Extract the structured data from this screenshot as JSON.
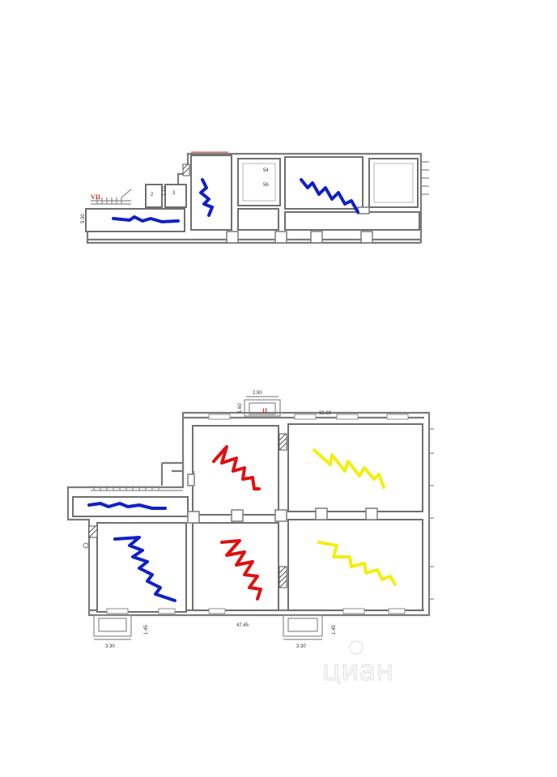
{
  "upper_plan": {
    "room_labels": {
      "room_2": "2",
      "room_3": "3",
      "dim_110": "1.10",
      "room_54": "54",
      "room_56": "56"
    },
    "section_label": "VII",
    "left_dim": "5.30"
  },
  "lower_plan": {
    "dims": {
      "top_small": "2.90",
      "top_vertical": "1.60",
      "top_total": "32.23",
      "bottom_total": "47.45",
      "bottom_left_width": "3.30",
      "bottom_left_height": "1.45",
      "bottom_right_width": "3.30",
      "bottom_right_height": "1.45"
    },
    "section_label": "II"
  },
  "colors": {
    "blue": "#1020c8",
    "red": "#e01010",
    "yellow": "#f4ee10",
    "wall": "#7b7b7b"
  },
  "watermark": "циан"
}
